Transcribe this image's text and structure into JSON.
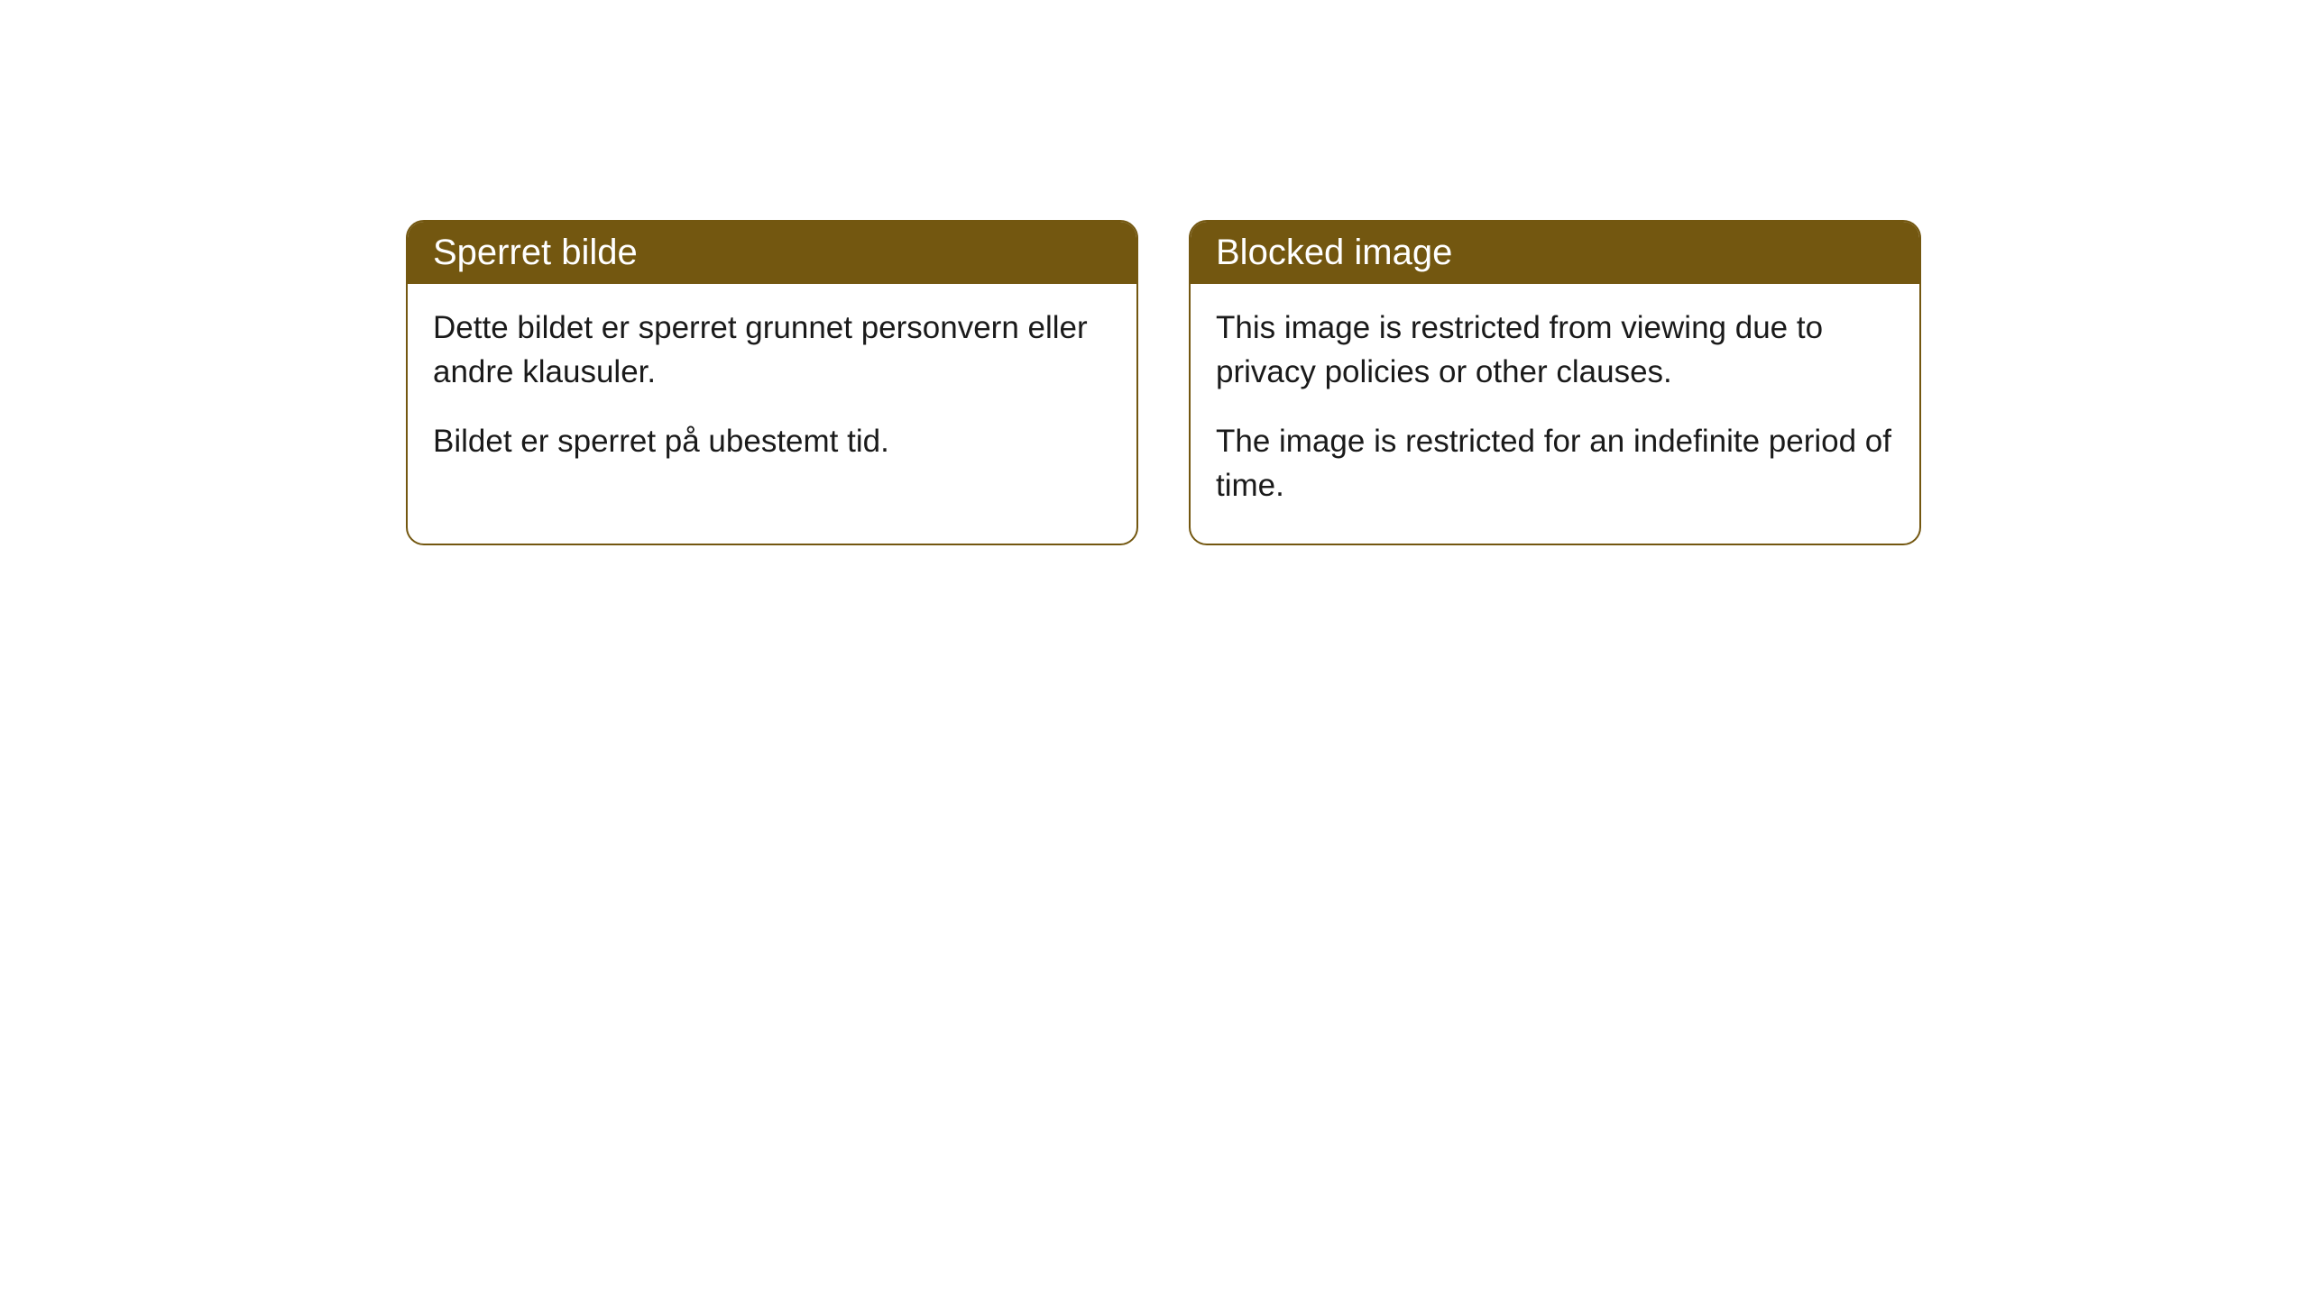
{
  "cards": [
    {
      "title": "Sperret bilde",
      "paragraph1": "Dette bildet er sperret grunnet personvern eller andre klausuler.",
      "paragraph2": "Bildet er sperret på ubestemt tid."
    },
    {
      "title": "Blocked image",
      "paragraph1": "This image is restricted from viewing due to privacy policies or other clauses.",
      "paragraph2": "The image is restricted for an indefinite period of time."
    }
  ],
  "style": {
    "header_background": "#735710",
    "header_text_color": "#ffffff",
    "border_color": "#735710",
    "body_background": "#ffffff",
    "body_text_color": "#1a1a1a",
    "border_radius": 20,
    "title_fontsize": 40,
    "body_fontsize": 35
  }
}
